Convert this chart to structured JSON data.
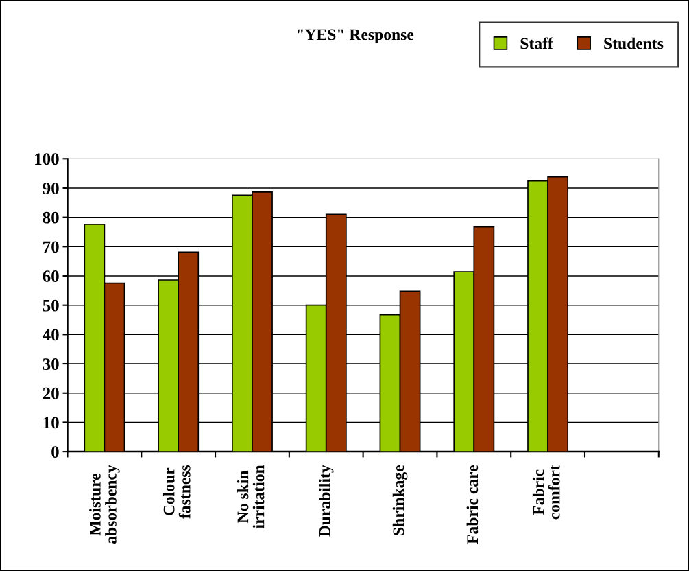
{
  "chart_data": {
    "type": "bar",
    "title": "\"YES\" Response",
    "categories": [
      "Moisture\nabsorbency",
      "Colour\nfastness",
      "No skin\nirritation",
      "Durability",
      "Shrinkage",
      "Fabric care",
      "Fabric\ncomfort",
      null
    ],
    "series": [
      {
        "name": "Staff",
        "color": "#99cc00",
        "values": [
          77.6,
          58.6,
          87.6,
          50,
          46.7,
          61.4,
          92.4,
          null
        ]
      },
      {
        "name": "Students",
        "color": "#993300",
        "values": [
          57.5,
          68.1,
          88.6,
          81,
          54.8,
          76.7,
          93.8,
          null
        ]
      }
    ],
    "ylim": [
      0,
      100
    ],
    "yticks": [
      0,
      10,
      20,
      30,
      40,
      50,
      60,
      70,
      80,
      90,
      100
    ],
    "grid": "y",
    "legend": "top right"
  }
}
